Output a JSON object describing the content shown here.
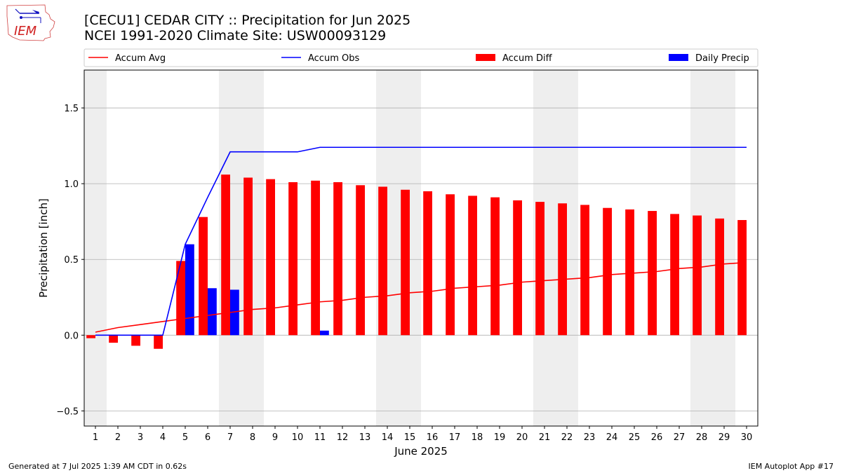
{
  "header": {
    "title_line1": "[CECU1] CEDAR CITY :: Precipitation for Jun 2025",
    "title_line2": "NCEI 1991-2020 Climate Site: USW00093129"
  },
  "logo": {
    "text": "IEM"
  },
  "footer": {
    "left": "Generated at 7 Jul 2025 1:39 AM CDT in 0.62s",
    "right": "IEM Autoplot App #17"
  },
  "colors": {
    "avg": "#ff0000",
    "obs": "#0000ff",
    "diff": "#ff0000",
    "daily": "#0000ff",
    "weekend_shade": "#eeeeee",
    "grid": "#b0b0b0"
  },
  "chart_data": {
    "type": "bar",
    "xlabel": "June 2025",
    "ylabel": "Precipitation [inch]",
    "ylim": [
      -0.6,
      1.75
    ],
    "yticks": [
      -0.5,
      0.0,
      0.5,
      1.0,
      1.5
    ],
    "ytick_labels": [
      "−0.5",
      "0.0",
      "0.5",
      "1.0",
      "1.5"
    ],
    "grid": "y",
    "legend_position": "top",
    "x": [
      1,
      2,
      3,
      4,
      5,
      6,
      7,
      8,
      9,
      10,
      11,
      12,
      13,
      14,
      15,
      16,
      17,
      18,
      19,
      20,
      21,
      22,
      23,
      24,
      25,
      26,
      27,
      28,
      29,
      30
    ],
    "weekend_days": [
      1,
      7,
      8,
      14,
      15,
      21,
      22,
      28,
      29
    ],
    "series": [
      {
        "name": "Accum Avg",
        "kind": "line",
        "values": [
          0.02,
          0.05,
          0.07,
          0.09,
          0.11,
          0.13,
          0.15,
          0.17,
          0.18,
          0.2,
          0.22,
          0.23,
          0.25,
          0.26,
          0.28,
          0.29,
          0.31,
          0.32,
          0.33,
          0.35,
          0.36,
          0.37,
          0.38,
          0.4,
          0.41,
          0.42,
          0.44,
          0.45,
          0.47,
          0.48
        ]
      },
      {
        "name": "Accum Obs",
        "kind": "line",
        "values": [
          0,
          0,
          0,
          0,
          0.6,
          0.91,
          1.21,
          1.21,
          1.21,
          1.21,
          1.24,
          1.24,
          1.24,
          1.24,
          1.24,
          1.24,
          1.24,
          1.24,
          1.24,
          1.24,
          1.24,
          1.24,
          1.24,
          1.24,
          1.24,
          1.24,
          1.24,
          1.24,
          1.24,
          1.24
        ]
      },
      {
        "name": "Accum Diff",
        "kind": "bar",
        "values": [
          -0.02,
          -0.05,
          -0.07,
          -0.09,
          0.49,
          0.78,
          1.06,
          1.04,
          1.03,
          1.01,
          1.02,
          1.01,
          0.99,
          0.98,
          0.96,
          0.95,
          0.93,
          0.92,
          0.91,
          0.89,
          0.88,
          0.87,
          0.86,
          0.84,
          0.83,
          0.82,
          0.8,
          0.79,
          0.77,
          0.76
        ]
      },
      {
        "name": "Daily Precip",
        "kind": "bar",
        "values": [
          0,
          0,
          0,
          0,
          0.6,
          0.31,
          0.3,
          0,
          0,
          0,
          0.03,
          0,
          0,
          0,
          0,
          0,
          0,
          0,
          0,
          0,
          0,
          0,
          0,
          0,
          0,
          0,
          0,
          0,
          0,
          0
        ]
      }
    ]
  }
}
